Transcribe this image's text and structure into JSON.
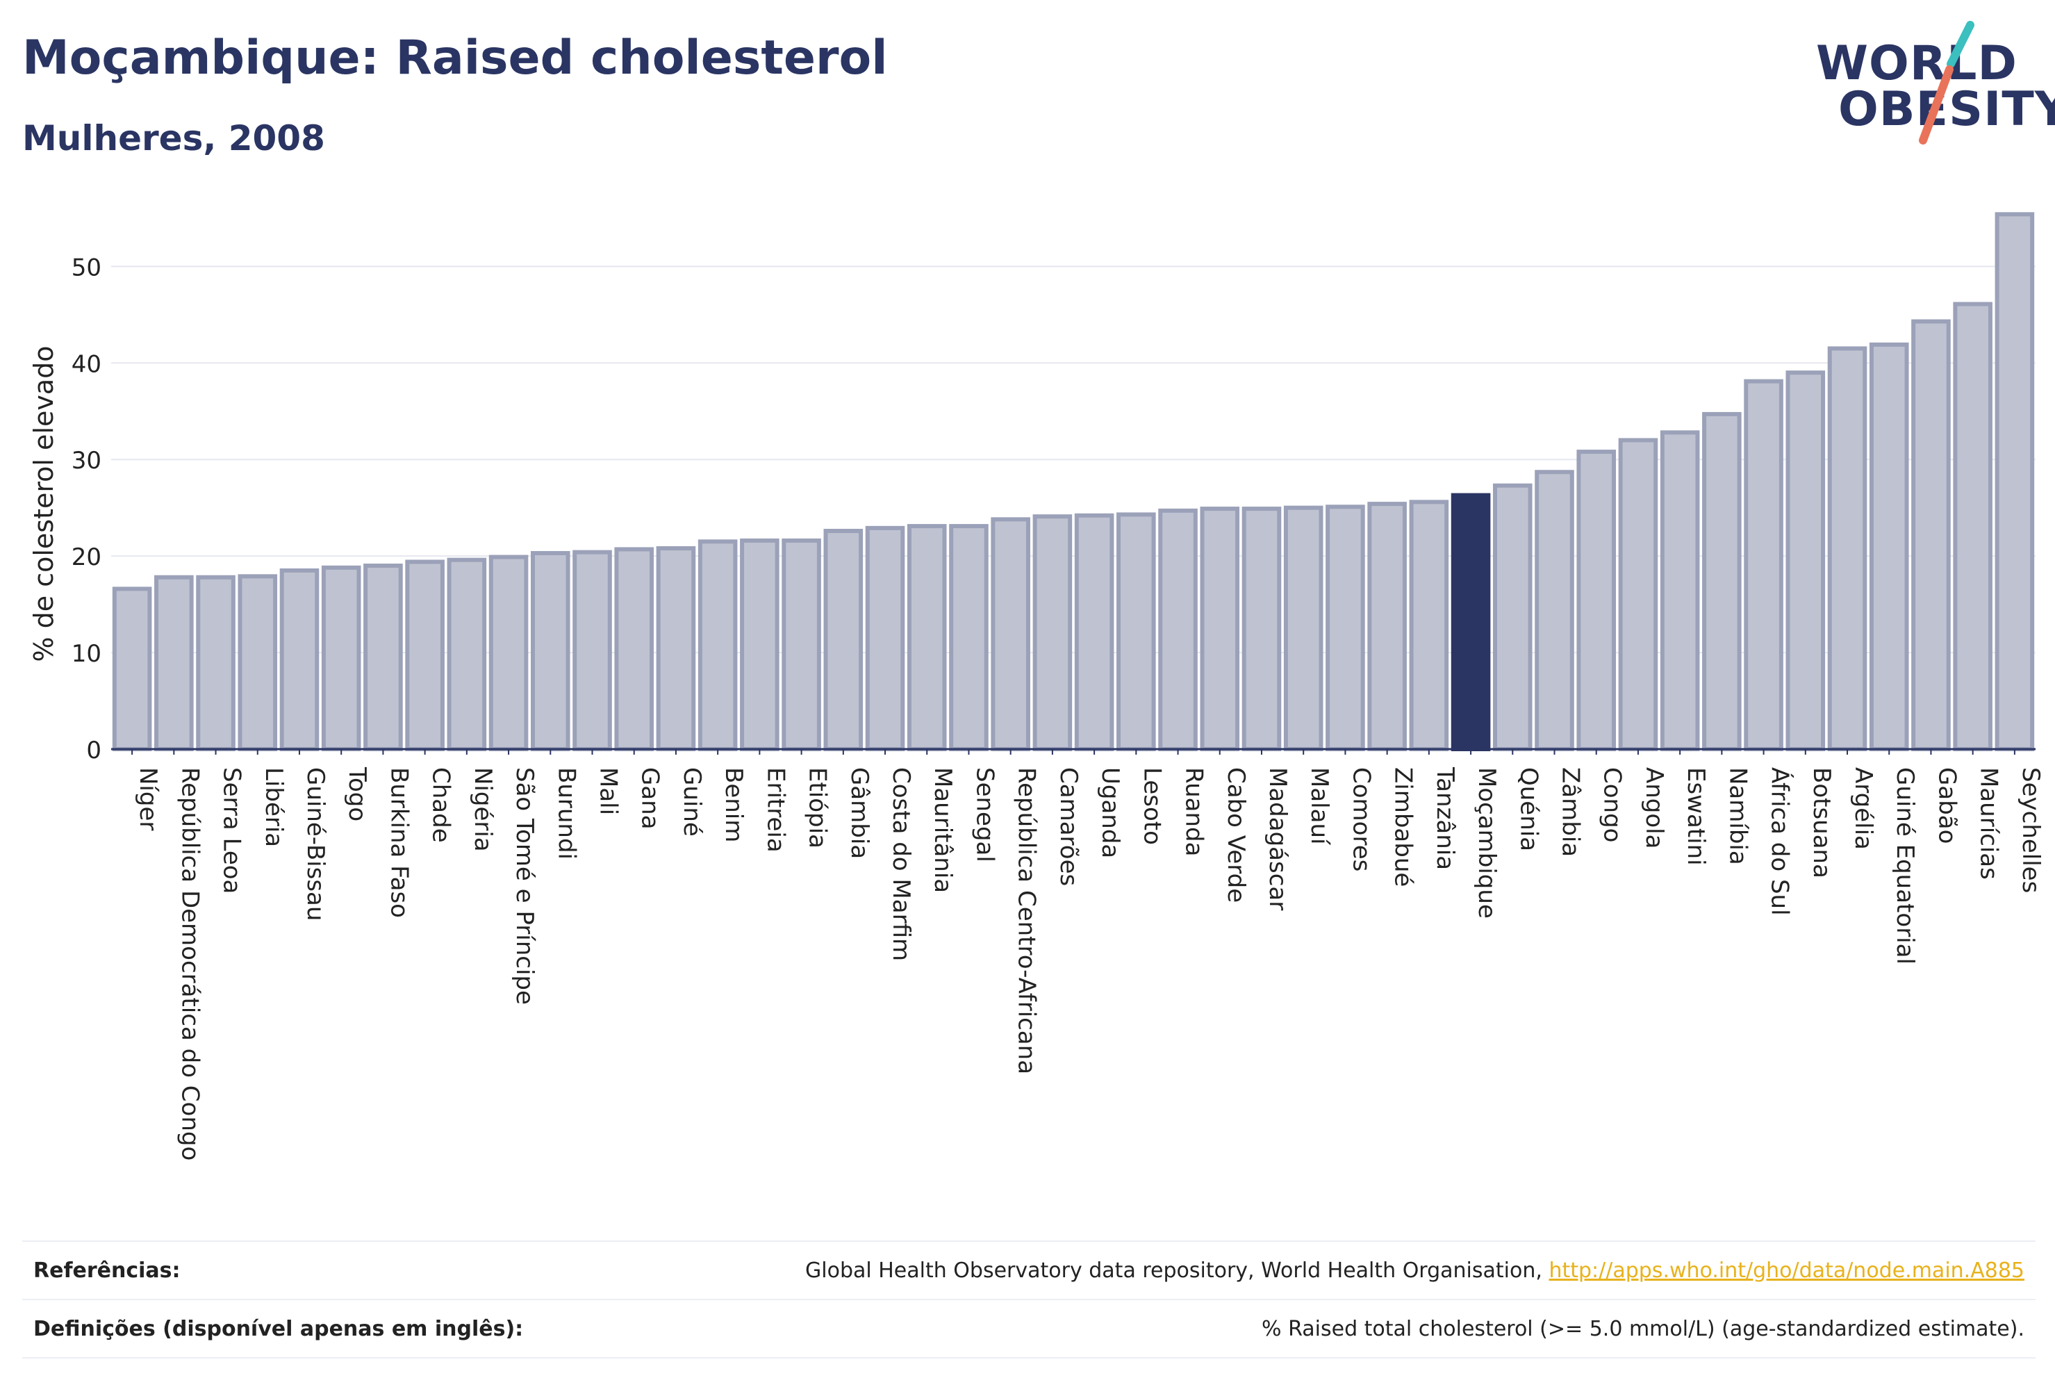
{
  "header": {
    "title": "Moçambique: Raised cholesterol",
    "subtitle": "Mulheres, 2008"
  },
  "logo": {
    "line1": "WORLD",
    "line2": "OBESITY",
    "colors": {
      "text": "#2a3563",
      "slash_top": "#3bbfbf",
      "slash_bottom": "#e8735a"
    }
  },
  "colors": {
    "bar_fill": "#bfc3d1",
    "bar_stroke": "#9ba1b8",
    "highlight": "#2a3563",
    "grid": "#e6e8ef",
    "axis": "#2a3563"
  },
  "chart_data": {
    "type": "bar",
    "ylabel": "% de colesterol elevado",
    "ylim": [
      0,
      56
    ],
    "yticks": [
      0,
      10,
      20,
      30,
      40,
      50
    ],
    "grid": true,
    "highlight_category": "Moçambique",
    "categories": [
      "Níger",
      "República Democrática do Congo",
      "Serra Leoa",
      "Libéria",
      "Guiné-Bissau",
      "Togo",
      "Burkina Faso",
      "Chade",
      "Nigéria",
      "São Tomé e Príncipe",
      "Burundi",
      "Mali",
      "Gana",
      "Guiné",
      "Benim",
      "Eritreia",
      "Etiópia",
      "Gâmbia",
      "Costa do Marfim",
      "Mauritânia",
      "Senegal",
      "República Centro-Africana",
      "Camarões",
      "Uganda",
      "Lesoto",
      "Ruanda",
      "Cabo Verde",
      "Madagáscar",
      "Malauí",
      "Comores",
      "Zimbabué",
      "Tanzânia",
      "Moçambique",
      "Quénia",
      "Zâmbia",
      "Congo",
      "Angola",
      "Eswatini",
      "Namíbia",
      "África do Sul",
      "Botsuana",
      "Argélia",
      "Guiné Equatorial",
      "Gabão",
      "Maurícias",
      "Seychelles"
    ],
    "values": [
      16.6,
      17.8,
      17.8,
      17.9,
      18.5,
      18.8,
      19.0,
      19.4,
      19.6,
      19.9,
      20.3,
      20.4,
      20.7,
      20.8,
      21.5,
      21.6,
      21.6,
      22.6,
      22.9,
      23.1,
      23.1,
      23.8,
      24.1,
      24.2,
      24.3,
      24.7,
      24.9,
      24.9,
      25.0,
      25.1,
      25.4,
      25.6,
      26.3,
      27.3,
      28.7,
      30.8,
      32.0,
      32.8,
      34.7,
      38.1,
      39.0,
      41.5,
      41.9,
      44.3,
      46.1,
      55.4
    ]
  },
  "references": {
    "ref_label": "Referências:",
    "ref_text": "Global Health Observatory data repository, World Health Organisation, ",
    "ref_link": "http://apps.who.int/gho/data/node.main.A885",
    "def_label": "Definições (disponível apenas em inglês):",
    "def_text": "% Raised total cholesterol (>= 5.0 mmol/L) (age-standardized estimate)."
  }
}
